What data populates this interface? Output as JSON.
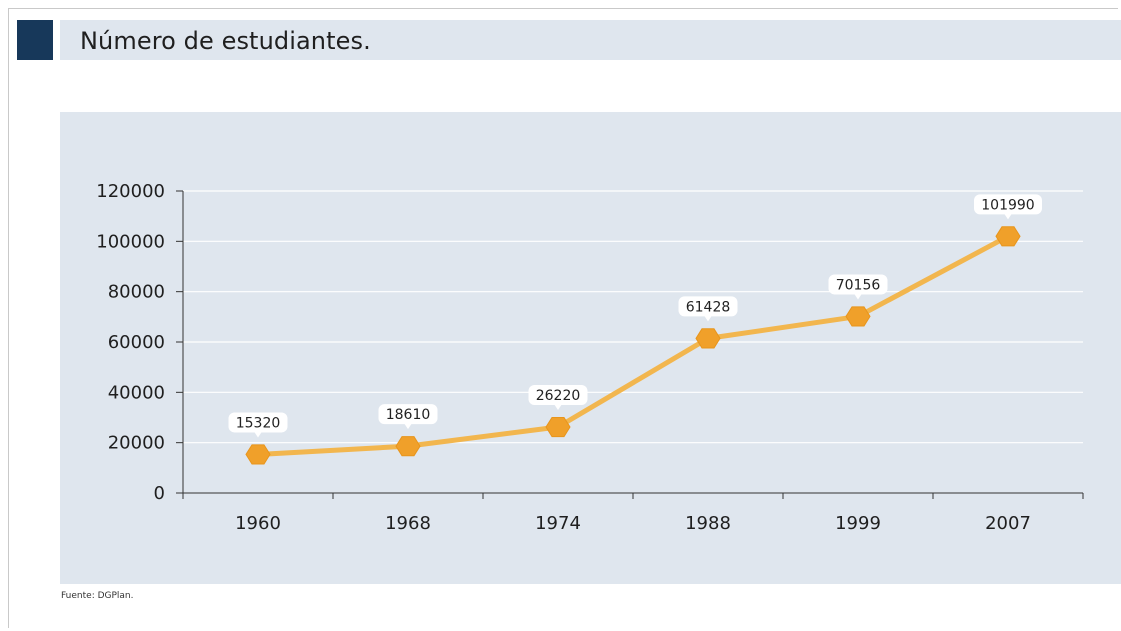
{
  "title": "Número de estudiantes.",
  "source": "Fuente: DGPlan.",
  "colors": {
    "title_square": "#17385a",
    "panel": "#dfe6ee",
    "line": "#f2b64e",
    "marker": "#f0a02a",
    "axis": "#333333",
    "grid": "#ffffff"
  },
  "chart_data": {
    "type": "line",
    "categories": [
      "1960",
      "1968",
      "1974",
      "1988",
      "1999",
      "2007"
    ],
    "series": [
      {
        "values": [
          15320,
          18610,
          26220,
          61428,
          70156,
          101990
        ]
      }
    ],
    "data_labels": [
      "15320",
      "18610",
      "26220",
      "61428",
      "70156",
      "101990"
    ],
    "y_ticks": [
      "0",
      "20000",
      "40000",
      "60000",
      "80000",
      "100000",
      "120000"
    ],
    "ylim": [
      0,
      120000
    ],
    "grid": true,
    "marker": "hexagon",
    "legend": "none"
  }
}
